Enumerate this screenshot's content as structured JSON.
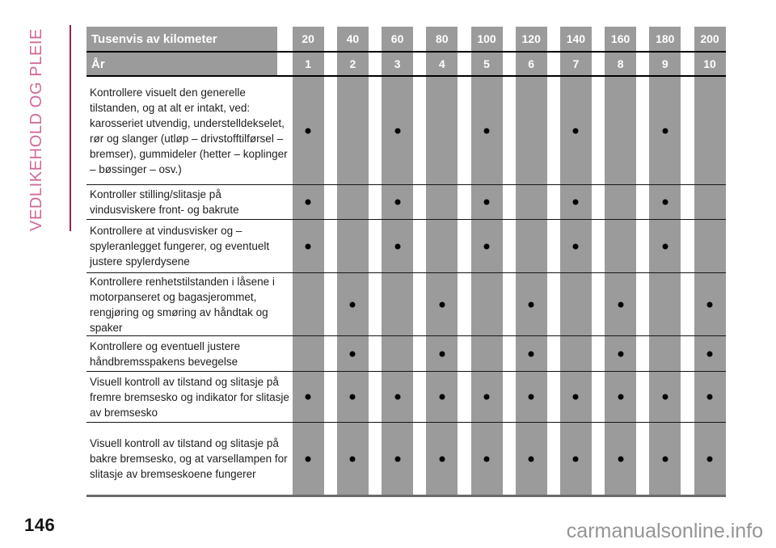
{
  "sidebar": {
    "label": "VEDLIKEHOLD OG PLEIE",
    "text_color": "#d0699a",
    "rule_color": "#9c1f52"
  },
  "table": {
    "stripe_color": "#9b9b9b",
    "header_text_color": "#ffffff",
    "km_header": {
      "label": "Tusenvis av kilometer",
      "values": [
        "20",
        "40",
        "60",
        "80",
        "100",
        "120",
        "140",
        "160",
        "180",
        "200"
      ]
    },
    "year_header": {
      "label": "År",
      "values": [
        "1",
        "2",
        "3",
        "4",
        "5",
        "6",
        "7",
        "8",
        "9",
        "10"
      ]
    },
    "rows": [
      {
        "label": "Kontrollere visuelt den generelle tilstanden, og at alt er intakt, ved: karosseriet utvendig, understelldekselet, rør og slanger (utløp – drivstofftilførsel – bremser), gummideler (hetter – koplinger – bøssinger – osv.)",
        "marks": [
          1,
          0,
          1,
          0,
          1,
          0,
          1,
          0,
          1,
          0
        ]
      },
      {
        "label": "Kontroller stilling/slitasje på vindusviskere front- og bakrute",
        "marks": [
          1,
          0,
          1,
          0,
          1,
          0,
          1,
          0,
          1,
          0
        ]
      },
      {
        "label": "Kontrollere at vindusvisker og –spyleranlegget fungerer, og eventuelt justere spylerdysene",
        "marks": [
          1,
          0,
          1,
          0,
          1,
          0,
          1,
          0,
          1,
          0
        ]
      },
      {
        "label": "Kontrollere renhetstilstanden i låsene i motorpanseret og bagasjerommet, rengjøring og smøring av håndtak og spaker",
        "marks": [
          0,
          1,
          0,
          1,
          0,
          1,
          0,
          1,
          0,
          1
        ]
      },
      {
        "label": "Kontrollere og eventuell justere håndbremsspakens bevegelse",
        "marks": [
          0,
          1,
          0,
          1,
          0,
          1,
          0,
          1,
          0,
          1
        ]
      },
      {
        "label": "Visuell kontroll av tilstand og slitasje på fremre bremsesko og indikator for slitasje av bremsesko",
        "marks": [
          1,
          1,
          1,
          1,
          1,
          1,
          1,
          1,
          1,
          1
        ]
      },
      {
        "label": "Visuell kontroll av tilstand og slitasje på bakre bremsesko, og at varsellampen for slitasje av bremseskoene fungerer",
        "marks": [
          1,
          1,
          1,
          1,
          1,
          1,
          1,
          1,
          1,
          1
        ]
      }
    ]
  },
  "footer": {
    "page_number": "146",
    "watermark": "carmanualsonline.info"
  }
}
